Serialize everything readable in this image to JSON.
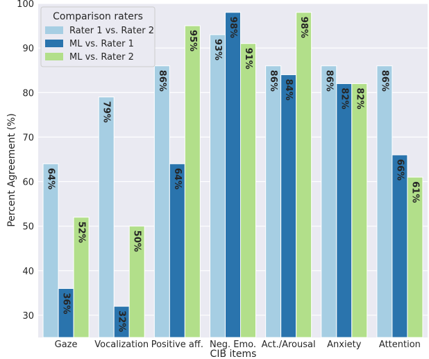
{
  "chart_data": {
    "type": "bar",
    "xlabel": "CIB items",
    "ylabel": "Percent Agreement (%)",
    "ylim": [
      25,
      100
    ],
    "yticks": [
      30,
      40,
      50,
      60,
      70,
      80,
      90,
      100
    ],
    "grid": true,
    "legend": {
      "title": "Comparison raters",
      "placement": "top-left"
    },
    "categories": [
      "Gaze",
      "Vocalization",
      "Positive aff.",
      "Neg. Emo.",
      "Act./Arousal",
      "Anxiety",
      "Attention"
    ],
    "series": [
      {
        "name": "Rater 1 vs. Rater 2",
        "color": "#a6cee3",
        "values": [
          64,
          79,
          86,
          93,
          86,
          86,
          86
        ],
        "labels": [
          "64%",
          "79%",
          "86%",
          "93%",
          "86%",
          "86%",
          "86%"
        ]
      },
      {
        "name": "ML vs. Rater 1",
        "color": "#2a74ad",
        "values": [
          36,
          32,
          64,
          98,
          84,
          82,
          66
        ],
        "labels": [
          "36%",
          "32%",
          "64%",
          "98%",
          "84%",
          "82%",
          "66%"
        ]
      },
      {
        "name": "ML vs. Rater 2",
        "color": "#b2df8a",
        "values": [
          52,
          50,
          95,
          91,
          98,
          82,
          61
        ],
        "labels": [
          "52%",
          "50%",
          "95%",
          "91%",
          "98%",
          "82%",
          "61%"
        ]
      }
    ]
  }
}
